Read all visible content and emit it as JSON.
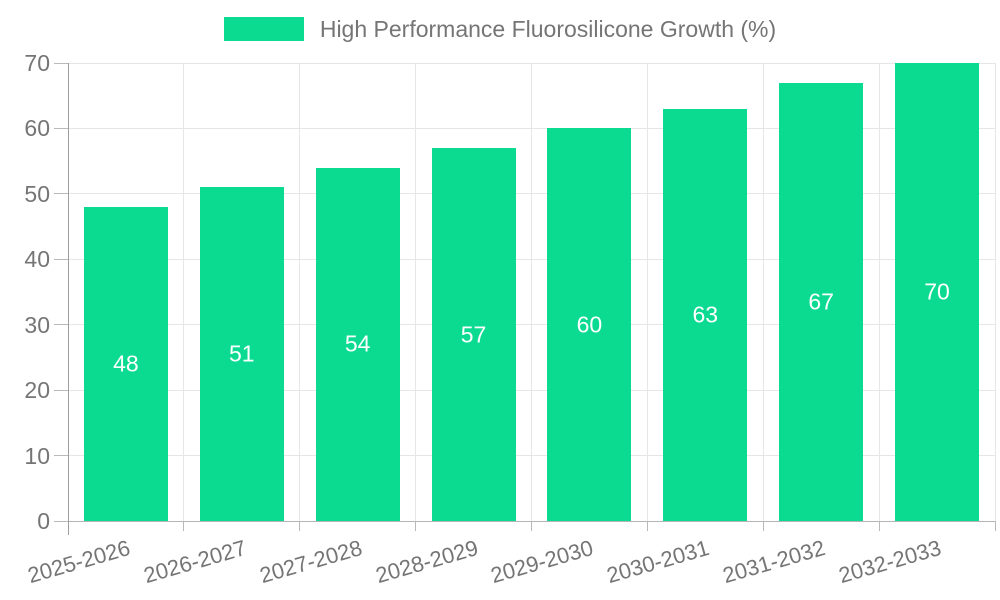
{
  "chart": {
    "legend": {
      "label": "High Performance Fluorosilicone Growth (%)",
      "position": "top"
    },
    "colors": {
      "bar": "#0bdb90",
      "grid": "#e6e6e6",
      "axis_line": "#9e9e9e",
      "baseline": "#b5b5b5",
      "tick": "#b9b9b9",
      "label_text": "#757575",
      "bar_label_text": "#ffffff",
      "background": "#ffffff"
    }
  },
  "chart_data": {
    "type": "bar",
    "title": "High Performance Fluorosilicone Growth (%)",
    "categories": [
      "2025-2026",
      "2026-2027",
      "2027-2028",
      "2028-2029",
      "2029-2030",
      "2030-2031",
      "2031-2032",
      "2032-2033"
    ],
    "values": [
      48,
      51,
      54,
      57,
      60,
      63,
      67,
      70
    ],
    "xlabel": "",
    "ylabel": "",
    "ylim": [
      0,
      70
    ],
    "yticks": [
      0,
      10,
      20,
      30,
      40,
      50,
      60,
      70
    ],
    "grid": true,
    "legend_position": "top",
    "value_labels": "inside-center",
    "x_label_rotation_deg": -16
  }
}
